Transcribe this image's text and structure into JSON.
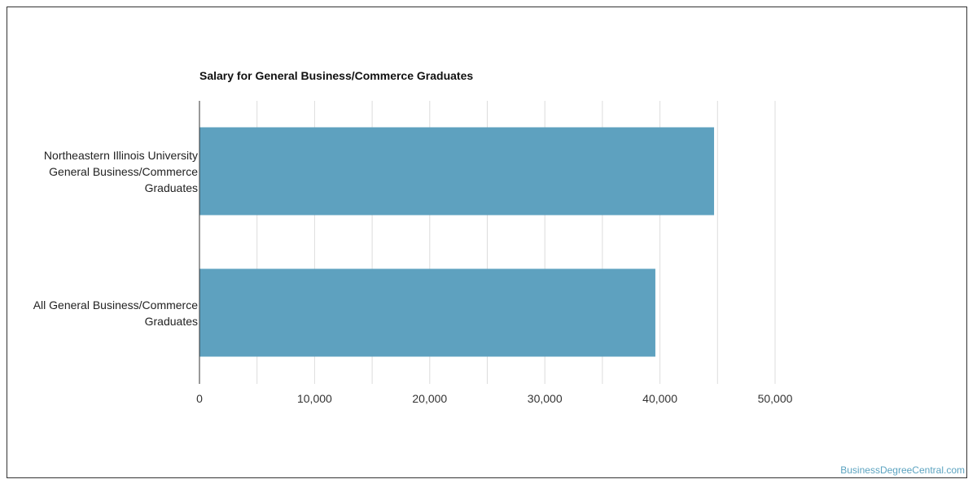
{
  "chart_data": {
    "type": "bar",
    "orientation": "horizontal",
    "title": "Salary for General Business/Commerce Graduates",
    "categories": [
      [
        "Northeastern Illinois University",
        "General Business/Commerce",
        "Graduates"
      ],
      [
        "All General Business/Commerce",
        "Graduates"
      ]
    ],
    "values": [
      44700,
      39600
    ],
    "xlim": [
      0,
      50000
    ],
    "xticks": [
      0,
      10000,
      20000,
      30000,
      40000,
      50000
    ],
    "xtick_labels": [
      "0",
      "10,000",
      "20,000",
      "30,000",
      "40,000",
      "50,000"
    ],
    "grid": true,
    "bar_color": "#5ea1bf"
  },
  "watermark": "BusinessDegreeCentral.com"
}
